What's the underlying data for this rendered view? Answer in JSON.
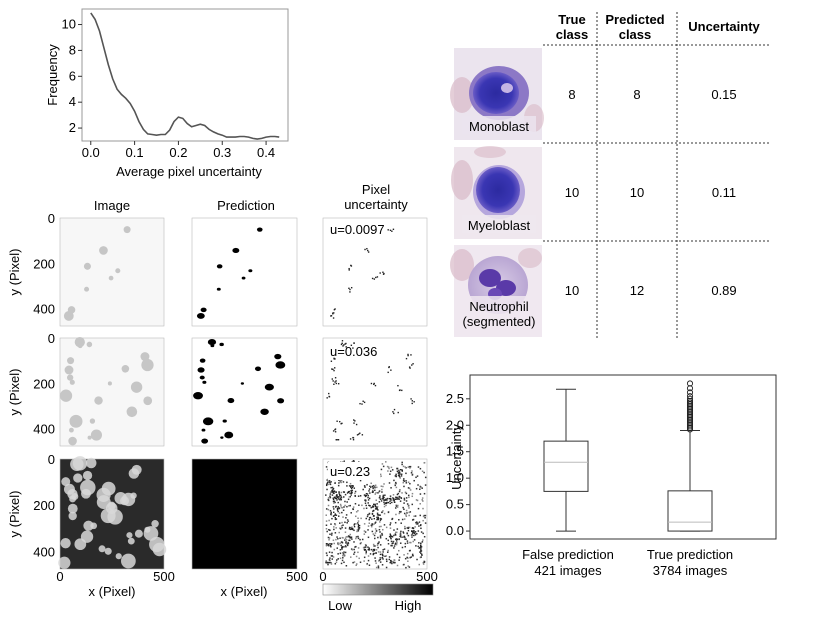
{
  "freq_chart": {
    "type": "line",
    "xlabel": "Average pixel uncertainty",
    "ylabel": "Frequency",
    "xlim": [
      -0.02,
      0.45
    ],
    "ylim": [
      1.0,
      11.2
    ],
    "xticks": [
      0.0,
      0.1,
      0.2,
      0.3,
      0.4
    ],
    "xtick_labels": [
      "0.0",
      "0.1",
      "0.2",
      "0.3",
      "0.4"
    ],
    "yticks": [
      2,
      4,
      6,
      8,
      10
    ],
    "ytick_labels": [
      "2",
      "4",
      "6",
      "8",
      "10"
    ],
    "series": [
      {
        "x": [
          0.0,
          0.01,
          0.02,
          0.03,
          0.04,
          0.05,
          0.06,
          0.07,
          0.08,
          0.09,
          0.1,
          0.11,
          0.12,
          0.13,
          0.14,
          0.15,
          0.16,
          0.17,
          0.18,
          0.19,
          0.2,
          0.21,
          0.22,
          0.23,
          0.24,
          0.25,
          0.26,
          0.27,
          0.28,
          0.29,
          0.3,
          0.31,
          0.32,
          0.33,
          0.34,
          0.35,
          0.36,
          0.37,
          0.38,
          0.39,
          0.4,
          0.41,
          0.42,
          0.43
        ],
        "y": [
          10.9,
          10.4,
          9.5,
          8.2,
          6.9,
          5.8,
          5.0,
          4.6,
          4.3,
          3.9,
          3.3,
          2.5,
          1.9,
          1.55,
          1.5,
          1.45,
          1.5,
          1.5,
          1.85,
          2.5,
          2.85,
          2.75,
          2.35,
          2.1,
          2.2,
          2.3,
          2.2,
          1.9,
          1.7,
          1.55,
          1.45,
          1.3,
          1.3,
          1.3,
          1.35,
          1.35,
          1.3,
          1.2,
          1.15,
          1.2,
          1.3,
          1.35,
          1.35,
          1.3
        ],
        "color": "#555555"
      }
    ]
  },
  "grid": {
    "col_titles": [
      "Image",
      "Prediction",
      "Pixel\nuncertainty"
    ],
    "ylabel": "y (Pixel)",
    "xlabel": "x (Pixel)",
    "x_tick_labels": [
      "0",
      "500"
    ],
    "y_tick_labels": [
      "0",
      "200",
      "400"
    ],
    "uncertainty_labels": [
      "u=0.0097",
      "u=0.036",
      "u=0.23"
    ],
    "colorbar": {
      "low": "Low",
      "high": "High"
    }
  },
  "cell_table": {
    "headers": [
      "True\nclass",
      "Predicted\nclass",
      "Uncertainty"
    ],
    "rows": [
      {
        "image_label": "Monoblast",
        "true_class": "8",
        "predicted_class": "8",
        "uncertainty": "0.15"
      },
      {
        "image_label": "Myeloblast",
        "true_class": "10",
        "predicted_class": "10",
        "uncertainty": "0.11"
      },
      {
        "image_label": "Neutrophil\n(segmented)",
        "true_class": "10",
        "predicted_class": "12",
        "uncertainty": "0.89"
      }
    ]
  },
  "chart_data": {
    "type": "box",
    "ylabel": "Uncertainty",
    "ylim": [
      -0.15,
      2.95
    ],
    "yticks": [
      0.0,
      0.5,
      1.0,
      1.5,
      2.0,
      2.5
    ],
    "ytick_labels": [
      "0.0",
      "0.5",
      "1.0",
      "1.5",
      "2.0",
      "2.5"
    ],
    "categories": [
      "False prediction\n421 images",
      "True prediction\n3784 images"
    ],
    "boxes": [
      {
        "whisker_low": 0.0,
        "q1": 0.75,
        "median": 1.3,
        "q3": 1.7,
        "whisker_high": 2.68,
        "outliers": []
      },
      {
        "whisker_low": 0.0,
        "q1": 0.0,
        "median": 0.17,
        "q3": 0.76,
        "whisker_high": 1.9,
        "outliers": [
          1.92,
          1.95,
          1.98,
          2.01,
          2.04,
          2.07,
          2.1,
          2.13,
          2.16,
          2.19,
          2.22,
          2.25,
          2.28,
          2.31,
          2.34,
          2.37,
          2.4,
          2.43,
          2.46,
          2.5,
          2.55,
          2.62,
          2.7,
          2.79
        ]
      }
    ],
    "median_color": "#bbbbbb"
  }
}
